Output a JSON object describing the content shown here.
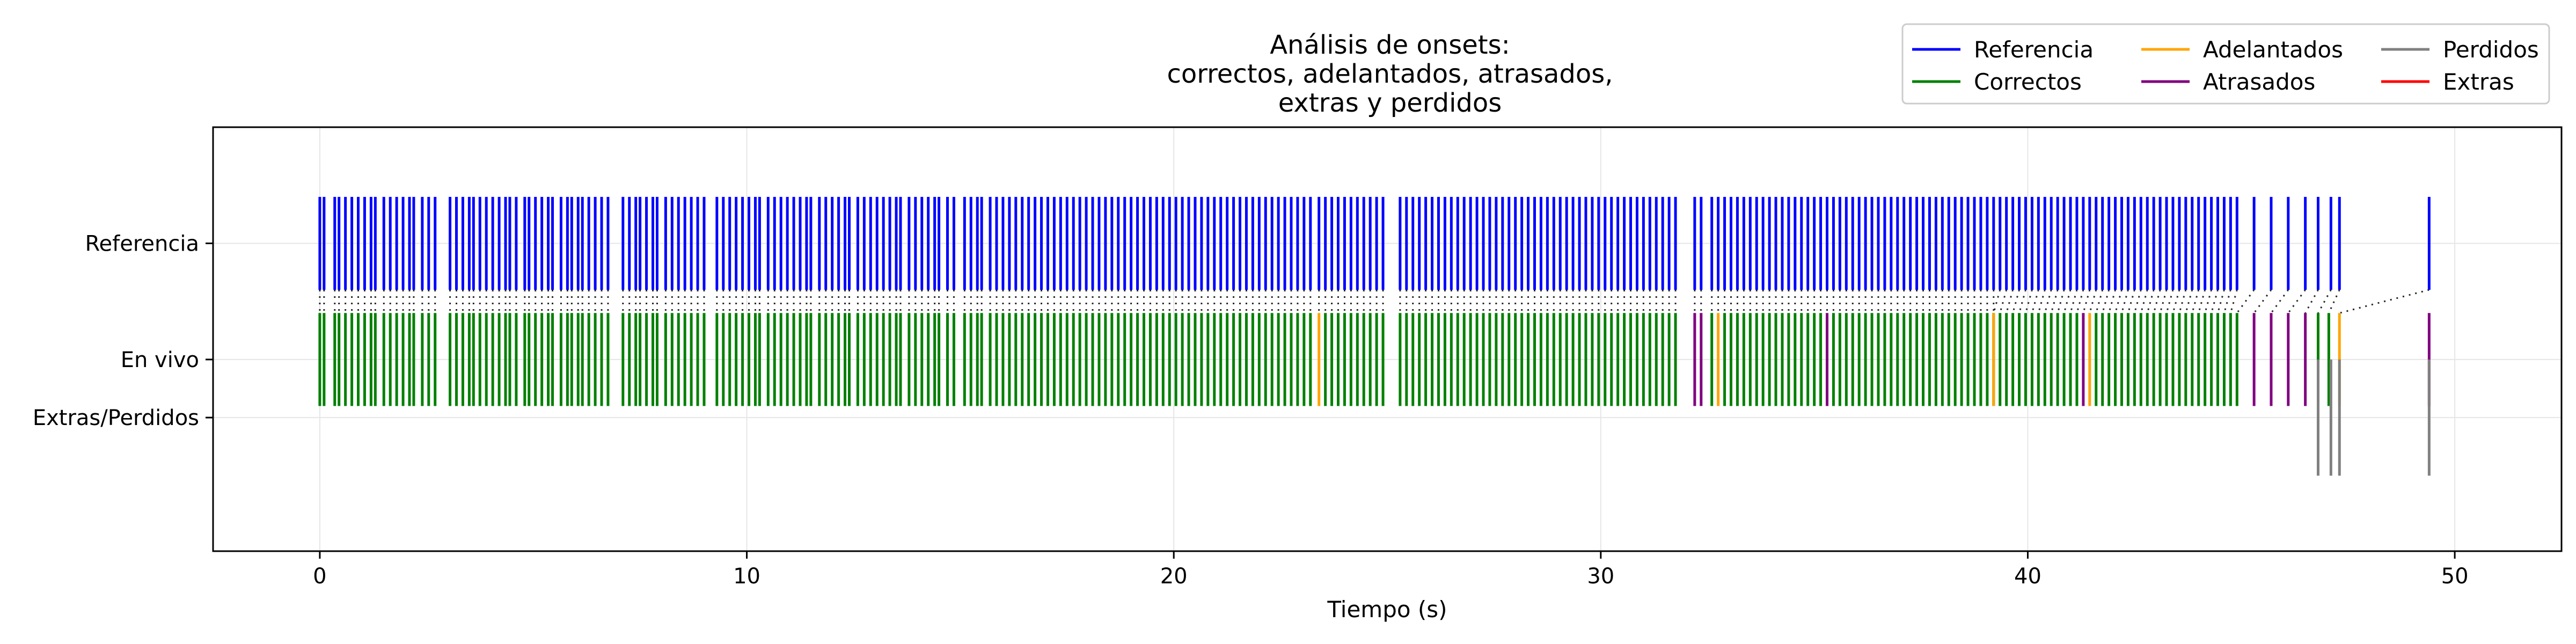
{
  "chart_data": {
    "type": "event",
    "title_lines": [
      "Análisis de onsets:",
      "correctos, adelantados, atrasados,",
      "extras y perdidos"
    ],
    "xlabel": "Tiempo (s)",
    "ylabel": "",
    "xlim": [
      -2.5,
      52.5
    ],
    "x_ticks": [
      0,
      10,
      20,
      30,
      40,
      50
    ],
    "x_tick_labels": [
      "0",
      "10",
      "20",
      "30",
      "40",
      "50"
    ],
    "y_ticks": [
      {
        "label": "Referencia",
        "value": 1.0
      },
      {
        "label": "En vivo",
        "value": 0.0
      },
      {
        "label": "Extras/Perdidos",
        "value": -0.5
      }
    ],
    "ylim": [
      -1.65,
      2.0
    ],
    "grid": true,
    "legend": {
      "position": "top-right",
      "ncol": 3,
      "entries": [
        {
          "label": "Referencia",
          "color": "#0000ff"
        },
        {
          "label": "Correctos",
          "color": "#008000"
        },
        {
          "label": "Adelantados",
          "color": "#ffa500"
        },
        {
          "label": "Atrasados",
          "color": "#800080"
        },
        {
          "label": "Perdidos",
          "color": "#808080"
        },
        {
          "label": "Extras",
          "color": "#ff0000"
        }
      ]
    },
    "series": [
      {
        "name": "Referencia",
        "color": "#0000ff",
        "y_range": [
          0.6,
          1.4
        ],
        "x": [
          0.0,
          0.1,
          0.35,
          0.45,
          0.6,
          0.75,
          0.9,
          1.05,
          1.2,
          1.3,
          1.5,
          1.65,
          1.8,
          1.95,
          2.1,
          2.2,
          2.4,
          2.55,
          2.7,
          3.05,
          3.2,
          3.35,
          3.5,
          3.6,
          3.75,
          3.9,
          4.05,
          4.2,
          4.35,
          4.45,
          4.6,
          4.8,
          4.9,
          5.05,
          5.2,
          5.35,
          5.45,
          5.65,
          5.8,
          5.9,
          6.05,
          6.15,
          6.3,
          6.45,
          6.6,
          6.75,
          7.1,
          7.25,
          7.4,
          7.5,
          7.65,
          7.8,
          7.9,
          8.1,
          8.25,
          8.4,
          8.55,
          8.7,
          8.85,
          9.0,
          9.3,
          9.45,
          9.6,
          9.75,
          9.9,
          10.05,
          10.2,
          10.3,
          10.5,
          10.65,
          10.8,
          10.95,
          11.1,
          11.25,
          11.4,
          11.5,
          11.7,
          11.85,
          12.0,
          12.15,
          12.3,
          12.4,
          12.6,
          12.75,
          12.9,
          13.05,
          13.2,
          13.35,
          13.5,
          13.6,
          13.8,
          13.95,
          14.1,
          14.25,
          14.4,
          14.5,
          14.7,
          14.85,
          15.1,
          15.25,
          15.4,
          15.5,
          15.7,
          15.85,
          16.0,
          16.15,
          16.3,
          16.45,
          16.6,
          16.75,
          16.9,
          17.05,
          17.2,
          17.35,
          17.5,
          17.65,
          17.8,
          17.95,
          18.1,
          18.25,
          18.4,
          18.55,
          18.7,
          18.85,
          19.0,
          19.15,
          19.3,
          19.45,
          19.6,
          19.75,
          19.9,
          20.05,
          20.2,
          20.35,
          20.5,
          20.65,
          20.8,
          20.95,
          21.1,
          21.25,
          21.4,
          21.55,
          21.7,
          21.85,
          22.0,
          22.15,
          22.3,
          22.45,
          22.6,
          22.75,
          22.9,
          23.05,
          23.2,
          23.4,
          23.55,
          23.7,
          23.85,
          24.0,
          24.15,
          24.3,
          24.45,
          24.6,
          24.75,
          24.9,
          25.3,
          25.45,
          25.6,
          25.75,
          25.9,
          26.05,
          26.2,
          26.35,
          26.5,
          26.65,
          26.8,
          26.95,
          27.1,
          27.25,
          27.4,
          27.55,
          27.7,
          27.85,
          28.0,
          28.15,
          28.3,
          28.45,
          28.6,
          28.75,
          28.9,
          29.05,
          29.2,
          29.35,
          29.5,
          29.65,
          29.8,
          29.95,
          30.1,
          30.25,
          30.4,
          30.55,
          30.7,
          30.85,
          31.0,
          31.15,
          31.3,
          31.45,
          31.6,
          31.75,
          32.2,
          32.35,
          32.6,
          32.75,
          32.9,
          33.05,
          33.2,
          33.35,
          33.5,
          33.65,
          33.8,
          33.95,
          34.1,
          34.25,
          34.4,
          34.55,
          34.7,
          34.85,
          35.0,
          35.15,
          35.3,
          35.45,
          35.6,
          35.75,
          35.9,
          36.05,
          36.2,
          36.35,
          36.5,
          36.65,
          36.8,
          36.95,
          37.1,
          37.25,
          37.4,
          37.55,
          37.7,
          37.85,
          38.0,
          38.15,
          38.3,
          38.45,
          38.6,
          38.75,
          38.9,
          39.05,
          39.2,
          39.35,
          39.5,
          39.65,
          39.8,
          39.95,
          40.1,
          40.25,
          40.4,
          40.55,
          40.7,
          40.85,
          41.0,
          41.15,
          41.3,
          41.45,
          41.6,
          41.75,
          41.9,
          42.05,
          42.2,
          42.35,
          42.5,
          42.65,
          42.8,
          42.95,
          43.1,
          43.25,
          43.4,
          43.55,
          43.7,
          43.85,
          44.0,
          44.15,
          44.3,
          44.45,
          44.6,
          44.75,
          44.9,
          45.3,
          45.7,
          46.1,
          46.5,
          46.8,
          47.1,
          47.3,
          49.4
        ]
      },
      {
        "name": "Correctos",
        "color": "#008000",
        "y_range": [
          -0.4,
          0.4
        ],
        "x": [
          0.0,
          0.1,
          0.35,
          0.45,
          0.6,
          0.75,
          0.9,
          1.05,
          1.2,
          1.3,
          1.5,
          1.65,
          1.8,
          1.95,
          2.1,
          2.2,
          2.4,
          2.55,
          2.7,
          3.05,
          3.2,
          3.35,
          3.5,
          3.6,
          3.75,
          3.9,
          4.05,
          4.2,
          4.35,
          4.45,
          4.6,
          4.8,
          4.9,
          5.05,
          5.2,
          5.35,
          5.45,
          5.65,
          5.8,
          5.9,
          6.05,
          6.15,
          6.3,
          6.45,
          6.6,
          6.75,
          7.1,
          7.25,
          7.4,
          7.5,
          7.65,
          7.8,
          7.9,
          8.1,
          8.25,
          8.4,
          8.55,
          8.7,
          8.85,
          9.0,
          9.3,
          9.45,
          9.6,
          9.75,
          9.9,
          10.05,
          10.2,
          10.3,
          10.5,
          10.65,
          10.8,
          10.95,
          11.1,
          11.25,
          11.4,
          11.5,
          11.7,
          11.85,
          12.0,
          12.15,
          12.3,
          12.4,
          12.6,
          12.75,
          12.9,
          13.05,
          13.2,
          13.35,
          13.5,
          13.6,
          13.8,
          13.95,
          14.1,
          14.25,
          14.4,
          14.5,
          14.7,
          14.85,
          15.1,
          15.25,
          15.4,
          15.5,
          15.7,
          15.85,
          16.0,
          16.15,
          16.3,
          16.45,
          16.6,
          16.75,
          16.9,
          17.05,
          17.2,
          17.35,
          17.5,
          17.65,
          17.8,
          17.95,
          18.1,
          18.25,
          18.4,
          18.55,
          18.7,
          18.85,
          19.0,
          19.15,
          19.3,
          19.45,
          19.6,
          19.75,
          19.9,
          20.05,
          20.2,
          20.35,
          20.5,
          20.65,
          20.8,
          20.95,
          21.1,
          21.25,
          21.4,
          21.55,
          21.7,
          21.85,
          22.0,
          22.15,
          22.3,
          22.45,
          22.6,
          22.75,
          22.9,
          23.05,
          23.2,
          23.55,
          23.7,
          23.85,
          24.0,
          24.15,
          24.3,
          24.45,
          24.6,
          24.75,
          24.9,
          25.3,
          25.45,
          25.6,
          25.75,
          25.9,
          26.05,
          26.2,
          26.35,
          26.5,
          26.65,
          26.8,
          26.95,
          27.1,
          27.25,
          27.4,
          27.55,
          27.7,
          27.85,
          28.0,
          28.15,
          28.3,
          28.45,
          28.6,
          28.75,
          28.9,
          29.05,
          29.2,
          29.35,
          29.5,
          29.65,
          29.8,
          29.95,
          30.1,
          30.25,
          30.4,
          30.55,
          30.7,
          30.85,
          31.0,
          31.15,
          31.3,
          31.45,
          31.6,
          31.75,
          32.6,
          32.9,
          33.05,
          33.2,
          33.35,
          33.5,
          33.65,
          33.8,
          33.95,
          34.1,
          34.25,
          34.4,
          34.55,
          34.7,
          34.85,
          35.0,
          35.15,
          35.45,
          35.6,
          35.75,
          35.9,
          36.05,
          36.2,
          36.35,
          36.5,
          36.65,
          36.8,
          36.95,
          37.1,
          37.25,
          37.4,
          37.55,
          37.7,
          37.85,
          38.0,
          38.15,
          38.3,
          38.45,
          38.6,
          38.75,
          38.9,
          39.05,
          39.2,
          39.35,
          39.5,
          39.65,
          39.8,
          39.95,
          40.1,
          40.25,
          40.4,
          40.55,
          40.7,
          40.85,
          41.0,
          41.15,
          41.6,
          41.75,
          41.9,
          42.05,
          42.2,
          42.35,
          42.5,
          42.65,
          42.8,
          42.95,
          43.1,
          43.25,
          43.4,
          43.55,
          43.7,
          43.85,
          44.0,
          44.15,
          44.3,
          44.45,
          44.6,
          44.75,
          44.9,
          46.8,
          47.05
        ]
      },
      {
        "name": "Adelantados",
        "color": "#ffa500",
        "y_range": [
          -0.4,
          0.4
        ],
        "x": [
          23.4,
          32.75,
          39.2,
          41.45,
          47.3
        ]
      },
      {
        "name": "Atrasados",
        "color": "#800080",
        "y_range": [
          -0.4,
          0.4
        ],
        "x": [
          32.2,
          32.35,
          35.3,
          41.3,
          45.3,
          45.7,
          46.1,
          46.5,
          49.4
        ]
      },
      {
        "name": "Perdidos",
        "color": "#808080",
        "y_range": [
          -1.0,
          0.0
        ],
        "x": [
          46.8,
          47.1,
          47.3,
          49.4
        ]
      },
      {
        "name": "Extras",
        "color": "#ff0000",
        "y_range": [
          -1.0,
          0.0
        ],
        "x": []
      }
    ],
    "connector_color": "#000000",
    "connector_style": "dotted"
  }
}
